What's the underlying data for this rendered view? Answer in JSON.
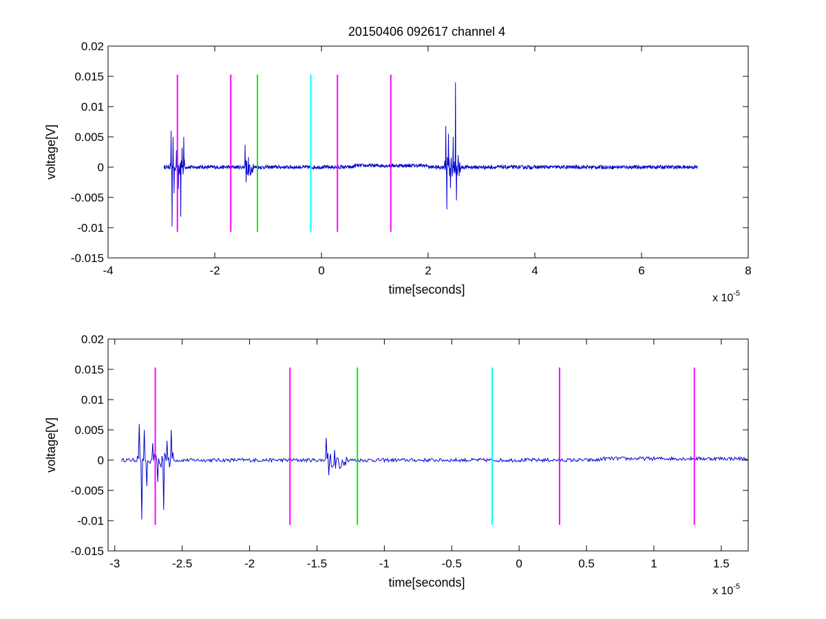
{
  "figure_title": "20150406 092617 channel 4",
  "colors": {
    "signal": "#0000cc",
    "marker_magenta": "#ff00ff",
    "marker_green": "#00ee00",
    "marker_cyan": "#00ffff",
    "axes": "#000000"
  },
  "markers": {
    "ymin": -0.0107,
    "ymax": 0.0153,
    "lines": [
      {
        "t": -2.7e-05,
        "color": "magenta"
      },
      {
        "t": -1.7e-05,
        "color": "magenta"
      },
      {
        "t": -1.2e-05,
        "color": "green"
      },
      {
        "t": -2e-06,
        "color": "cyan"
      },
      {
        "t": 3e-06,
        "color": "magenta"
      },
      {
        "t": 1.3e-05,
        "color": "magenta"
      }
    ]
  },
  "chart_data": [
    {
      "type": "line",
      "title": "20150406 092617 channel 4",
      "xlabel": "time[seconds]",
      "ylabel": "voltage[V]",
      "x_multiplier": "x 10",
      "x_exponent": "-5",
      "xlim": [
        -4,
        8
      ],
      "ylim": [
        -0.015,
        0.02
      ],
      "xticks": [
        "-4",
        "-2",
        "0",
        "2",
        "4",
        "6",
        "8"
      ],
      "yticks": [
        "0.02",
        "0.015",
        "0.01",
        "0.005",
        "0",
        "-0.005",
        "-0.01",
        "-0.015"
      ],
      "series": [
        {
          "x_range": [
            -2.95,
            7.05
          ]
        }
      ]
    },
    {
      "type": "line",
      "title": "",
      "xlabel": "time[seconds]",
      "ylabel": "voltage[V]",
      "x_multiplier": "x 10",
      "x_exponent": "-5",
      "xlim": [
        -3.05,
        1.7
      ],
      "ylim": [
        -0.015,
        0.02
      ],
      "xticks": [
        "-3",
        "-2.5",
        "-2",
        "-1.5",
        "-1",
        "-0.5",
        "0",
        "0.5",
        "1",
        "1.5"
      ],
      "yticks": [
        "0.02",
        "0.015",
        "0.01",
        "0.005",
        "0",
        "-0.005",
        "-0.01",
        "-0.015"
      ],
      "series": [
        {
          "x_range": [
            -2.95,
            1.7
          ]
        }
      ]
    }
  ],
  "signal_events": [
    {
      "t": -2.82,
      "v": 0.006
    },
    {
      "t": -2.8,
      "v": -0.0098
    },
    {
      "t": -2.78,
      "v": 0.005
    },
    {
      "t": -2.76,
      "v": -0.0043
    },
    {
      "t": -2.72,
      "v": 0.0028
    },
    {
      "t": -2.68,
      "v": -0.0036
    },
    {
      "t": -2.64,
      "v": -0.0082
    },
    {
      "t": -2.61,
      "v": 0.0032
    },
    {
      "t": -2.58,
      "v": 0.005
    },
    {
      "t": -1.43,
      "v": 0.0037
    },
    {
      "t": -1.41,
      "v": -0.0025
    },
    {
      "t": -1.36,
      "v": -0.0014
    },
    {
      "t": -1.3,
      "v": -0.0009
    },
    {
      "t": 2.33,
      "v": 0.0068
    },
    {
      "t": 2.35,
      "v": -0.007
    },
    {
      "t": 2.38,
      "v": 0.0055
    },
    {
      "t": 2.42,
      "v": -0.0035
    },
    {
      "t": 2.47,
      "v": 0.005
    },
    {
      "t": 2.51,
      "v": 0.014
    },
    {
      "t": 2.53,
      "v": -0.0055
    },
    {
      "t": 2.56,
      "v": 0.002
    }
  ]
}
